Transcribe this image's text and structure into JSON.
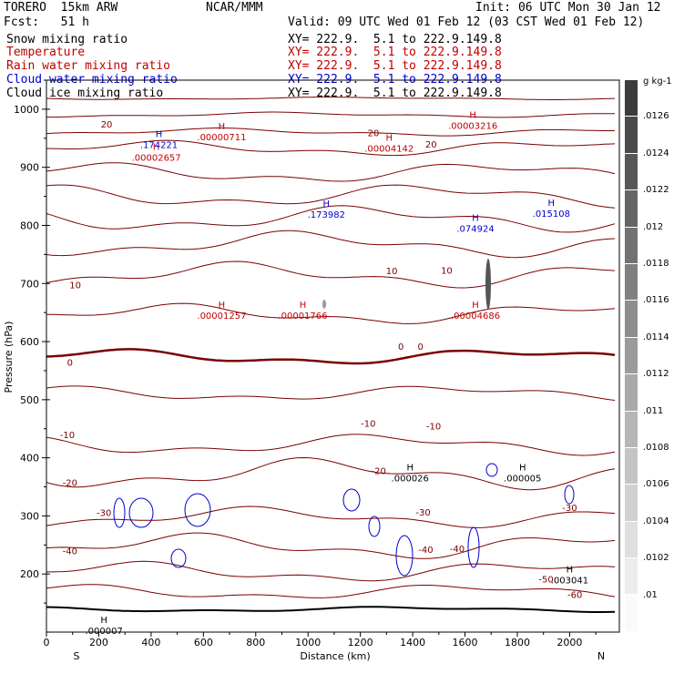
{
  "header": {
    "model": "TORERO  15km ARW",
    "org": "NCAR/MMM",
    "init": "Init: 06 UTC Mon 30 Jan 12",
    "fcst": "Fcst:   51 h",
    "valid": "Valid: 09 UTC Wed 01 Feb 12 (03 CST Wed 01 Feb 12)"
  },
  "legend": [
    {
      "name": "Snow mixing ratio",
      "xy": "XY= 222.9.  5.1 to 222.9.149.8",
      "color": "#000000"
    },
    {
      "name": "Temperature",
      "xy": "XY= 222.9.  5.1 to 222.9.149.8",
      "color": "#c00000"
    },
    {
      "name": "Rain water mixing ratio",
      "xy": "XY= 222.9.  5.1 to 222.9.149.8",
      "color": "#c00000"
    },
    {
      "name": "Cloud water mixing ratio",
      "xy": "XY= 222.9.  5.1 to 222.9.149.8",
      "color": "#0000cc"
    },
    {
      "name": "Cloud ice mixing ratio",
      "xy": "XY= 222.9.  5.1 to 222.9.149.8",
      "color": "#000000"
    }
  ],
  "chart_data": {
    "type": "contour-cross-section",
    "xlabel": "Distance (km)",
    "ylabel": "Pressure (hPa)",
    "xlim": [
      0,
      2190
    ],
    "ylim": [
      1050,
      100
    ],
    "x_ticks": [
      "0",
      "200",
      "400",
      "600",
      "800",
      "1000",
      "1200",
      "1400",
      "1600",
      "1800",
      "2000"
    ],
    "y_ticks": [
      "200",
      "300",
      "400",
      "500",
      "600",
      "700",
      "800",
      "900",
      "1000"
    ],
    "end_labels": {
      "left": "S",
      "right": "N"
    },
    "colorbar": {
      "unit": "g kg-1",
      "labels": [
        ".0126",
        ".0124",
        ".0122",
        ".012",
        ".0118",
        ".0116",
        ".0114",
        ".0112",
        ".011",
        ".0108",
        ".0106",
        ".0104",
        ".0102",
        ".01"
      ]
    },
    "temperature_labels": [
      {
        "text": "-60",
        "x": 2020,
        "p": 165
      },
      {
        "text": "-50",
        "x": 1910,
        "p": 192
      },
      {
        "text": "-40",
        "x": 90,
        "p": 240
      },
      {
        "text": "-40",
        "x": 1450,
        "p": 243
      },
      {
        "text": "-40",
        "x": 1570,
        "p": 244
      },
      {
        "text": "-30",
        "x": 220,
        "p": 306
      },
      {
        "text": "-30",
        "x": 1440,
        "p": 307
      },
      {
        "text": "-30",
        "x": 2000,
        "p": 315
      },
      {
        "text": "-20",
        "x": 90,
        "p": 358
      },
      {
        "text": "-20",
        "x": 1270,
        "p": 378
      },
      {
        "text": "-10",
        "x": 80,
        "p": 440
      },
      {
        "text": "-10",
        "x": 1230,
        "p": 460
      },
      {
        "text": "-10",
        "x": 1480,
        "p": 455
      },
      {
        "text": "0",
        "x": 90,
        "p": 565
      },
      {
        "text": "0",
        "x": 1355,
        "p": 592
      },
      {
        "text": "0",
        "x": 1430,
        "p": 592
      },
      {
        "text": "10",
        "x": 110,
        "p": 698
      },
      {
        "text": "10",
        "x": 1320,
        "p": 722
      },
      {
        "text": "10",
        "x": 1530,
        "p": 723
      },
      {
        "text": "20",
        "x": 230,
        "p": 975
      },
      {
        "text": "20",
        "x": 1470,
        "p": 940
      },
      {
        "text": "20",
        "x": 1250,
        "p": 960
      }
    ],
    "rain_maxima": [
      {
        "label": "H",
        "value": ".00001257",
        "x": 670,
        "p": 658
      },
      {
        "label": "H",
        "value": ".00001766",
        "x": 980,
        "p": 658
      },
      {
        "label": "H",
        "value": ".00004686",
        "x": 1640,
        "p": 658
      },
      {
        "label": "H",
        "value": ".00002657",
        "x": 420,
        "p": 930
      },
      {
        "label": "H",
        "value": ".00000711",
        "x": 670,
        "p": 965
      },
      {
        "label": "H",
        "value": ".00004142",
        "x": 1310,
        "p": 946
      },
      {
        "label": "H",
        "value": ".00003216",
        "x": 1630,
        "p": 985
      }
    ],
    "cloud_water_maxima": [
      {
        "label": "H",
        "value": ".173982",
        "x": 1070,
        "p": 832
      },
      {
        "label": "H",
        "value": ".074924",
        "x": 1640,
        "p": 808
      },
      {
        "label": "H",
        "value": ".015108",
        "x": 1930,
        "p": 834
      },
      {
        "label": "H",
        "value": ".174221",
        "x": 430,
        "p": 952
      }
    ],
    "snow_maxima": [
      {
        "label": "H",
        "value": ".003041",
        "x": 2000,
        "p": 203
      },
      {
        "label": "H",
        "value": ".000026",
        "x": 1390,
        "p": 378
      },
      {
        "label": "H",
        "value": ".000005",
        "x": 1820,
        "p": 378
      }
    ],
    "ice_maxima": [
      {
        "label": "H",
        "value": ".000007",
        "x": 220,
        "p": 116
      }
    ]
  }
}
